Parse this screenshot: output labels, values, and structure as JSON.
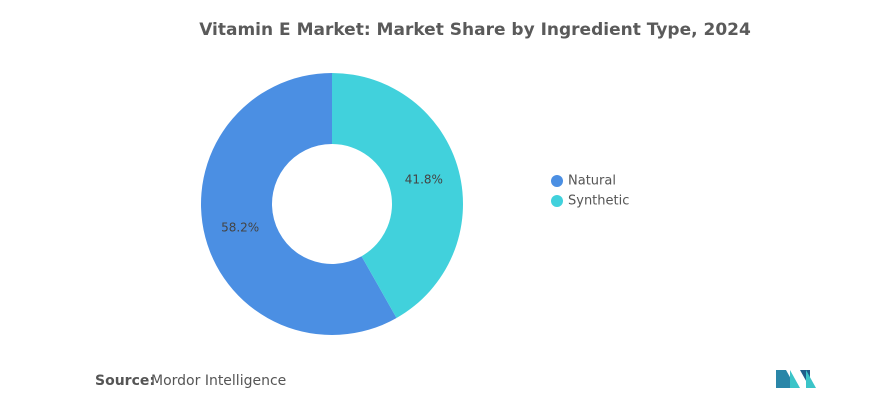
{
  "chart_data": {
    "type": "donut",
    "title": "Vitamin E Market: Market Share by Ingredient Type, 2024",
    "categories": [
      "Natural",
      "Synthetic"
    ],
    "values": [
      58.2,
      41.8
    ],
    "value_labels": [
      "58.2%",
      "41.8%"
    ],
    "colors": [
      "#4b8fe3",
      "#41d1dc"
    ],
    "legend": "right",
    "source": {
      "label": "Source:",
      "text": "Mordor Intelligence"
    }
  }
}
